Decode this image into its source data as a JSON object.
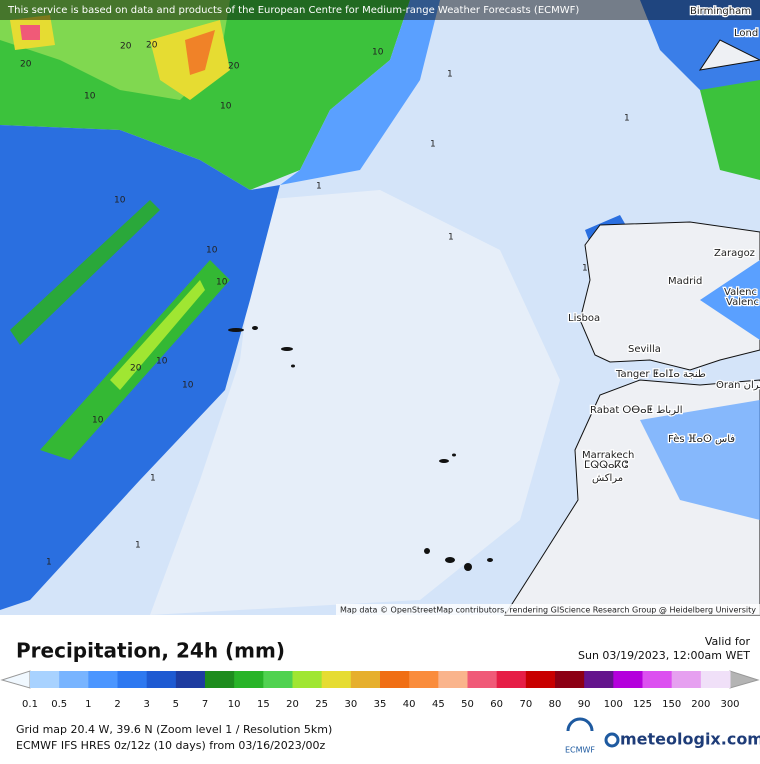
{
  "header": {
    "notice": "This service is based on data and products of the European Centre for Medium-range Weather Forecasts (ECMWF)"
  },
  "map": {
    "cities": [
      "Birmingham",
      "Lond",
      "Zaragoz",
      "Madrid",
      "Valenc",
      "Valenc",
      "Lisboa",
      "Sevilla",
      "Tanger ⵟⴰⵏⵊⴰ طنجة",
      "Rabat ⵔⴱⴰⵟ الرباط",
      "Fès ⴼⴰⵙ فاس",
      "Marrakech",
      "ⵎⵕⵕⴰⴽⵛ",
      "مراكش",
      "Oran وهران"
    ],
    "contour_labels": [
      20,
      20,
      20,
      20,
      10,
      10,
      10,
      10,
      10,
      10,
      10,
      20,
      10,
      10,
      1,
      1,
      1,
      1,
      1,
      1,
      1,
      1,
      1
    ],
    "attribution": "Map data © OpenStreetMap contributors, rendering GIScience Research Group @ Heidelberg University"
  },
  "legend": {
    "title": "Precipitation, 24h (mm)",
    "valid_label": "Valid for",
    "valid_time": "Sun 03/19/2023, 12:00am WET",
    "levels": [
      0.1,
      0.5,
      1,
      2,
      3,
      5,
      7,
      10,
      15,
      20,
      25,
      30,
      35,
      40,
      45,
      50,
      60,
      70,
      80,
      90,
      100,
      125,
      150,
      200,
      300
    ],
    "colors": [
      "#a8d2ff",
      "#78b4ff",
      "#4b96ff",
      "#2d78f0",
      "#1e5ad2",
      "#1e3ca0",
      "#1e8c1e",
      "#28b428",
      "#50d250",
      "#a0e632",
      "#e6dc32",
      "#e6af2d",
      "#f06e14",
      "#fa8c3c",
      "#fab48c",
      "#f05a78",
      "#e61e46",
      "#c80000",
      "#8c0014",
      "#64148c",
      "#b400dc",
      "#dc50f0",
      "#e6a0f0",
      "#f0e0f8"
    ]
  },
  "footer": {
    "grid": "Grid map 20.4 W, 39.6 N (Zoom level 1 / Resolution 5km)",
    "model": "ECMWF IFS HRES 0z/12z (10 days)  from  03/16/2023/00z",
    "ecmwf": "ECMWF",
    "brand": "meteologix.com"
  }
}
